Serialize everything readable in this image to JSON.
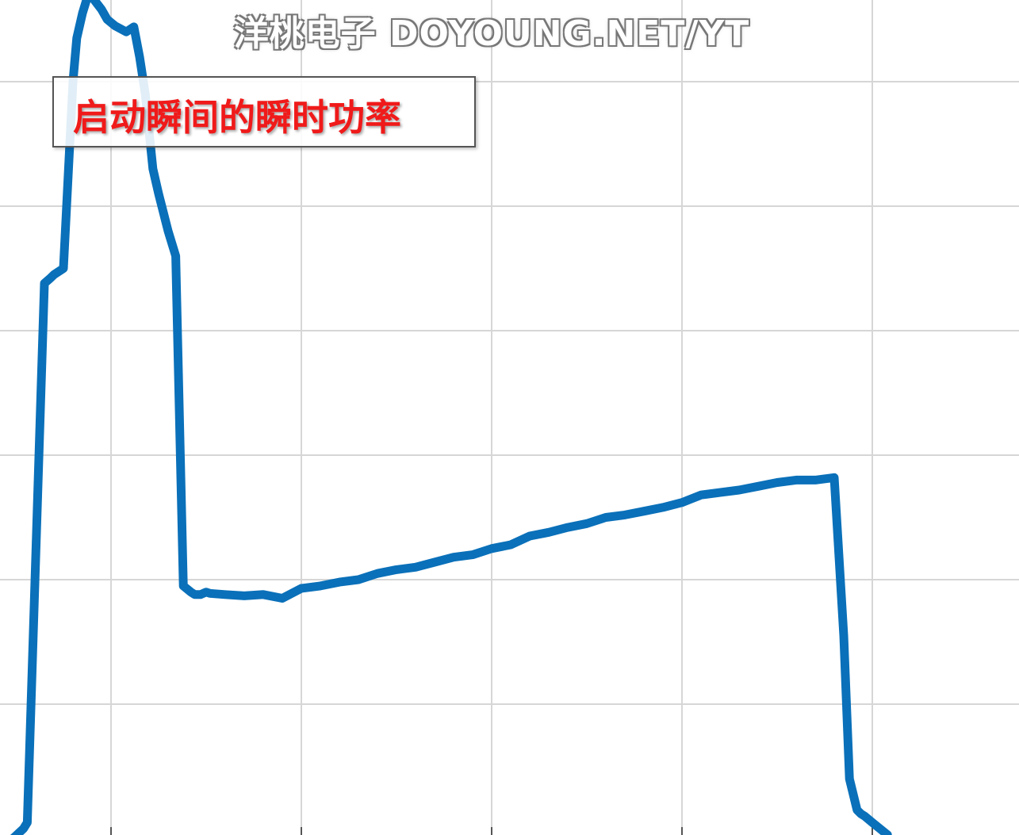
{
  "watermark": "洋桃电子 DOYOUNG.NET/YT",
  "annotation": "启动瞬间的瞬时功率",
  "colors": {
    "line": "#0a70b9",
    "grid": "#d6d6d6",
    "annotation_text": "#f01a1a"
  },
  "chart_data": {
    "type": "line",
    "title": "",
    "xlabel": "",
    "ylabel": "",
    "grid": true,
    "xlim": [
      -0.4,
      5.0
    ],
    "ylim": [
      0,
      6.7
    ],
    "xgrid": [
      0.3,
      1.3,
      2.3,
      3.3,
      4.3
    ],
    "ygrid": [
      1.0,
      2.0,
      3.0,
      4.0,
      5.0,
      6.0
    ],
    "series": [
      {
        "values_x": [
          -0.3,
          -0.16,
          -0.14,
          -0.05,
          -0.02,
          0.0,
          0.05,
          0.1,
          0.12,
          0.15,
          0.18,
          0.2,
          0.25,
          0.28,
          0.32,
          0.38,
          0.42,
          0.45,
          0.48,
          0.52,
          0.55,
          0.6,
          0.64,
          0.68,
          0.72,
          0.74,
          0.77,
          0.8,
          0.82,
          0.9,
          1.0,
          1.1,
          1.2,
          1.3,
          1.4,
          1.5,
          1.6,
          1.7,
          1.8,
          1.9,
          2.0,
          2.1,
          2.2,
          2.3,
          2.4,
          2.5,
          2.6,
          2.7,
          2.8,
          2.9,
          3.0,
          3.1,
          3.2,
          3.3,
          3.4,
          3.5,
          3.6,
          3.7,
          3.8,
          3.9,
          4.0,
          4.1,
          4.15,
          4.18,
          4.22,
          4.24,
          4.26,
          4.3,
          4.34,
          4.38
        ],
        "values_y": [
          -0.2,
          0.0,
          0.05,
          4.38,
          4.42,
          4.45,
          4.5,
          6.0,
          6.35,
          6.55,
          6.7,
          6.68,
          6.58,
          6.5,
          6.45,
          6.4,
          6.44,
          6.2,
          5.9,
          5.3,
          5.1,
          4.8,
          4.6,
          1.95,
          1.9,
          1.88,
          1.88,
          1.9,
          1.89,
          1.88,
          1.87,
          1.88,
          1.85,
          1.93,
          1.95,
          1.98,
          2.0,
          2.05,
          2.08,
          2.1,
          2.14,
          2.18,
          2.2,
          2.25,
          2.28,
          2.35,
          2.38,
          2.42,
          2.45,
          2.5,
          2.52,
          2.55,
          2.58,
          2.62,
          2.68,
          2.7,
          2.72,
          2.75,
          2.78,
          2.8,
          2.8,
          2.82,
          1.55,
          0.4,
          0.15,
          0.12,
          0.1,
          0.05,
          0.0,
          -0.05
        ]
      }
    ]
  }
}
